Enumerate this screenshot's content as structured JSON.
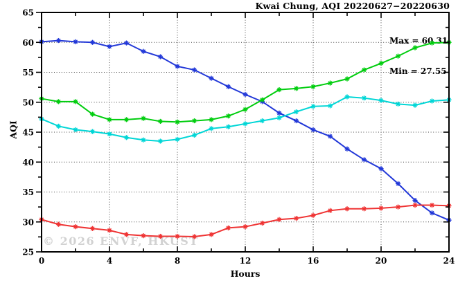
{
  "chart_data": {
    "type": "line",
    "title": "Kwai Chung, AQI 20220627−20220630",
    "xlabel": "Hours",
    "ylabel": "AQI",
    "xlim": [
      0,
      24
    ],
    "ylim": [
      25,
      65
    ],
    "x_major_ticks": [
      0,
      4,
      8,
      12,
      16,
      20,
      24
    ],
    "x_minor_step": 2,
    "y_major_ticks": [
      25,
      30,
      35,
      40,
      45,
      50,
      55,
      60,
      65
    ],
    "y_minor_step": 2.5,
    "grid": "dotted lines at major ticks, box frame, no legend",
    "annotations": [
      "Max = 60.31",
      "Min = 27.55"
    ],
    "watermark": "© 2026 ENVF, HKUST",
    "x": [
      0,
      1,
      2,
      3,
      4,
      5,
      6,
      7,
      8,
      9,
      10,
      11,
      12,
      13,
      14,
      15,
      16,
      17,
      18,
      19,
      20,
      21,
      22,
      23,
      24
    ],
    "series": [
      {
        "name": "blue-line",
        "color": "#2238d8",
        "marker": "asterisk",
        "values": [
          60.1,
          60.31,
          60.1,
          60.0,
          59.3,
          59.9,
          58.5,
          57.6,
          56.0,
          55.4,
          54.0,
          52.6,
          51.3,
          50.1,
          48.2,
          46.9,
          45.4,
          44.3,
          42.2,
          40.4,
          38.9,
          36.4,
          33.6,
          31.5,
          30.3
        ]
      },
      {
        "name": "green-line",
        "color": "#00cd0e",
        "marker": "asterisk",
        "values": [
          50.6,
          50.1,
          50.1,
          48.0,
          47.1,
          47.1,
          47.3,
          46.8,
          46.7,
          46.9,
          47.1,
          47.7,
          48.8,
          50.4,
          52.1,
          52.3,
          52.6,
          53.2,
          53.9,
          55.4,
          56.5,
          57.7,
          59.1,
          59.9,
          60.0
        ]
      },
      {
        "name": "cyan-line",
        "color": "#00d6d6",
        "marker": "asterisk",
        "values": [
          47.2,
          46.0,
          45.4,
          45.1,
          44.7,
          44.1,
          43.7,
          43.5,
          43.8,
          44.5,
          45.6,
          45.9,
          46.4,
          46.9,
          47.4,
          48.4,
          49.3,
          49.4,
          50.9,
          50.7,
          50.3,
          49.7,
          49.5,
          50.2,
          50.4
        ]
      },
      {
        "name": "red-line",
        "color": "#ef3434",
        "marker": "asterisk",
        "values": [
          30.4,
          29.6,
          29.2,
          28.9,
          28.6,
          27.9,
          27.7,
          27.6,
          27.6,
          27.55,
          27.9,
          29.0,
          29.2,
          29.8,
          30.4,
          30.6,
          31.1,
          31.9,
          32.2,
          32.2,
          32.3,
          32.5,
          32.8,
          32.8,
          32.7
        ]
      }
    ],
    "colors": {
      "background": "#ffffff",
      "frame": "#000000",
      "grid": "#444444",
      "watermark": "#d2d2d2"
    }
  }
}
